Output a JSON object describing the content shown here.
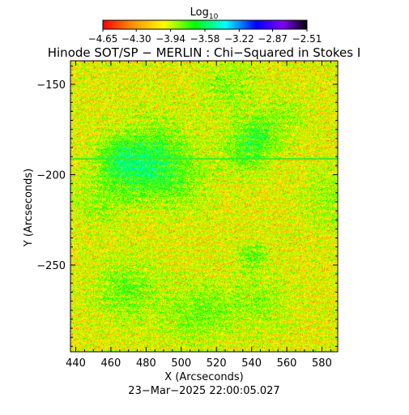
{
  "chart_data": {
    "type": "heatmap",
    "title": "Hinode SOT/SP − MERLIN : Chi−Squared in Stokes I",
    "xlabel": "X (Arcseconds)",
    "ylabel": "Y (Arcseconds)",
    "xlim": [
      437,
      589
    ],
    "ylim": [
      -298,
      -137
    ],
    "x_ticks": [
      440,
      460,
      480,
      500,
      520,
      540,
      560,
      580
    ],
    "x_tick_labels": [
      "440",
      "460",
      "480",
      "500",
      "520",
      "540",
      "560",
      "580"
    ],
    "y_ticks": [
      -150,
      -200,
      -250
    ],
    "y_tick_labels": [
      "−150",
      "−200",
      "−250"
    ],
    "colorbar": {
      "label_base": "Log",
      "label_sub": "10",
      "range": [
        -4.65,
        -2.51
      ],
      "tick_values": [
        -4.65,
        -4.3,
        -3.94,
        -3.58,
        -3.22,
        -2.87,
        -2.51
      ],
      "tick_labels": [
        "−4.65",
        "−4.30",
        "−3.94",
        "−3.58",
        "−3.22",
        "−2.87",
        "−2.51"
      ],
      "colormap": [
        "#ff0000",
        "#ff8c00",
        "#ffff00",
        "#00ff00",
        "#00ffff",
        "#0000ff",
        "#8000ff",
        "#000000"
      ]
    },
    "dominant_value": -4.0,
    "grid": false,
    "footer": "23−Mar−2025 22:00:05.027"
  }
}
